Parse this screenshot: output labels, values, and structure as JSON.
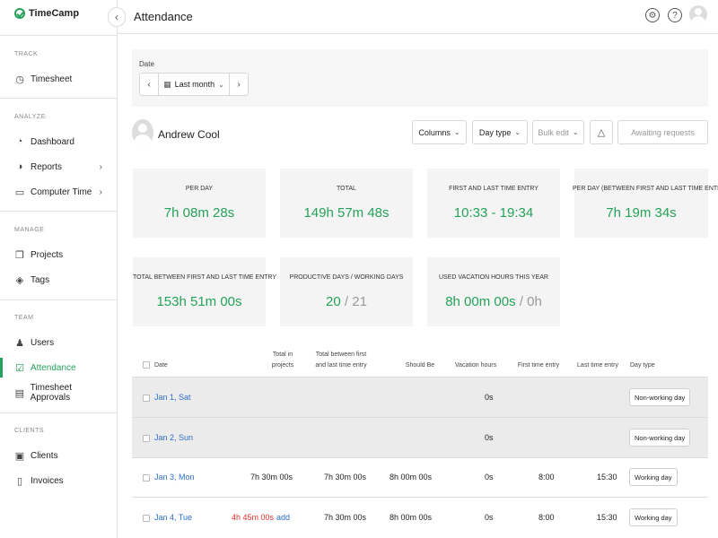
{
  "app": {
    "name": "TimeCamp",
    "collapse_icon": "chevron-left-icon"
  },
  "sidebar": {
    "sections": [
      {
        "label": "TRACK"
      },
      {
        "label": "ANALYZE"
      },
      {
        "label": "MANAGE"
      },
      {
        "label": "TEAM"
      },
      {
        "label": "CLIENTS"
      }
    ],
    "items": [
      {
        "label": "Timesheet",
        "icon": "clock-icon"
      },
      {
        "label": "Dashboard",
        "icon": "dashboard-icon"
      },
      {
        "label": "Reports",
        "icon": "pie-chart-icon"
      },
      {
        "label": "Computer Time",
        "icon": "monitor-icon"
      },
      {
        "label": "Projects",
        "icon": "folders-icon"
      },
      {
        "label": "Tags",
        "icon": "tag-icon"
      },
      {
        "label": "Users",
        "icon": "users-icon"
      },
      {
        "label": "Attendance",
        "icon": "check-square-icon",
        "active": true
      },
      {
        "label": "Timesheet Approvals",
        "icon": "clipboard-icon"
      },
      {
        "label": "Clients",
        "icon": "briefcase-icon"
      },
      {
        "label": "Invoices",
        "icon": "invoice-icon"
      }
    ]
  },
  "header": {
    "title": "Attendance"
  },
  "filters": {
    "date_label": "Date",
    "date_value": "Last month"
  },
  "user": {
    "name": "Andrew Cool"
  },
  "toolbar": {
    "columns": "Columns",
    "day_type": "Day type",
    "bulk_edit": "Bulk edit",
    "awaiting": "Awaiting requests"
  },
  "stats": [
    {
      "label": "PER DAY",
      "value": "7h 08m 28s"
    },
    {
      "label": "TOTAL",
      "value": "149h 57m 48s"
    },
    {
      "label": "FIRST AND LAST TIME ENTRY",
      "value": "10:33 - 19:34"
    },
    {
      "label": "PER DAY (BETWEEN FIRST AND LAST TIME ENTRY)",
      "value": "7h 19m 34s"
    },
    {
      "label": "TOTAL BETWEEN FIRST AND LAST TIME ENTRY",
      "value": "153h 51m 00s"
    },
    {
      "label": "PRODUCTIVE DAYS / WORKING DAYS",
      "value": "20",
      "secondary": "21"
    },
    {
      "label": "USED VACATION HOURS THIS YEAR",
      "value": "8h 00m 00s",
      "secondary": "0h"
    }
  ],
  "table": {
    "headers": {
      "date": "Date",
      "total_projects_1": "Total in",
      "total_projects_2": "projects",
      "total_between_1": "Total between first",
      "total_between_2": "and last time entry",
      "should_be": "Should Be",
      "vacation": "Vacation hours",
      "first_entry": "First time entry",
      "last_entry": "Last time entry",
      "day_type": "Day type"
    },
    "rows": [
      {
        "date": "Jan 1, Sat",
        "total_projects": "",
        "add": "",
        "total_between": "",
        "should_be": "",
        "vacation": "0s",
        "first": "",
        "last": "",
        "day_type": "Non-working day"
      },
      {
        "date": "Jan 2, Sun",
        "total_projects": "",
        "add": "",
        "total_between": "",
        "should_be": "",
        "vacation": "0s",
        "first": "",
        "last": "",
        "day_type": "Non-working day"
      },
      {
        "date": "Jan 3, Mon",
        "total_projects": "7h 30m 00s",
        "add": "",
        "total_between": "7h 30m 00s",
        "should_be": "8h 00m 00s",
        "vacation": "0s",
        "first": "8:00",
        "last": "15:30",
        "day_type": "Working day"
      },
      {
        "date": "Jan 4, Tue",
        "total_projects": "4h 45m 00s",
        "add": "add",
        "total_between": "7h 30m 00s",
        "should_be": "8h 00m 00s",
        "vacation": "0s",
        "first": "8:00",
        "last": "15:30",
        "day_type": "Working day"
      }
    ]
  },
  "colors": {
    "accent": "#25a259",
    "link": "#2a6ec8",
    "danger": "#e0322f"
  }
}
